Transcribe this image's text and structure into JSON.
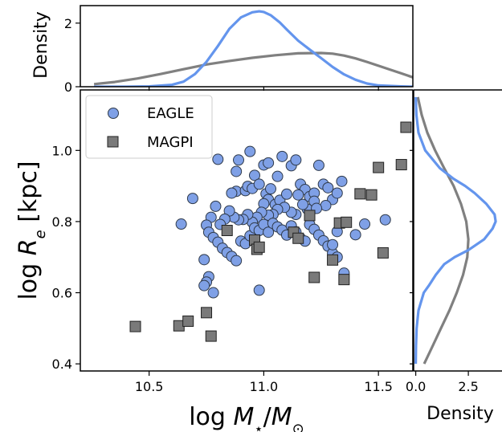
{
  "chart_data": [
    {
      "type": "scatter",
      "panel": "main",
      "title": "",
      "xlabel": "log M⋆/M⊙",
      "ylabel": "log Re [kpc]",
      "xlim": [
        10.2,
        11.65
      ],
      "ylim": [
        0.38,
        1.17
      ],
      "xticks": [
        "10.5",
        "11.0",
        "11.5"
      ],
      "yticks": [
        "0.4",
        "0.6",
        "0.8",
        "1.0"
      ],
      "grid": false,
      "legend_position": "upper-left",
      "series": [
        {
          "name": "EAGLE",
          "marker": "circle",
          "color": "#7fa0e6",
          "points": [
            [
              10.69,
              0.865
            ],
            [
              10.64,
              0.793
            ],
            [
              10.74,
              0.693
            ],
            [
              10.8,
              0.975
            ],
            [
              10.94,
              0.997
            ],
            [
              10.89,
              0.973
            ],
            [
              10.88,
              0.885
            ],
            [
              10.92,
              0.887
            ],
            [
              10.88,
              0.941
            ],
            [
              10.86,
              0.88
            ],
            [
              10.93,
              0.899
            ],
            [
              10.95,
              0.893
            ],
            [
              10.96,
              0.93
            ],
            [
              10.98,
              0.905
            ],
            [
              11.0,
              0.959
            ],
            [
              11.02,
              0.965
            ],
            [
              11.01,
              0.878
            ],
            [
              11.03,
              0.892
            ],
            [
              11.06,
              0.927
            ],
            [
              11.02,
              0.862
            ],
            [
              11.0,
              0.85
            ],
            [
              11.05,
              0.848
            ],
            [
              11.07,
              0.86
            ],
            [
              11.1,
              0.877
            ],
            [
              11.12,
              0.957
            ],
            [
              11.14,
              0.973
            ],
            [
              11.16,
              0.905
            ],
            [
              11.18,
              0.89
            ],
            [
              11.2,
              0.87
            ],
            [
              11.22,
              0.88
            ],
            [
              11.24,
              0.958
            ],
            [
              11.26,
              0.905
            ],
            [
              11.28,
              0.895
            ],
            [
              11.3,
              0.862
            ],
            [
              11.32,
              0.88
            ],
            [
              11.34,
              0.913
            ],
            [
              11.22,
              0.857
            ],
            [
              11.19,
              0.835
            ],
            [
              11.17,
              0.848
            ],
            [
              11.14,
              0.82
            ],
            [
              11.12,
              0.826
            ],
            [
              11.09,
              0.84
            ],
            [
              11.06,
              0.834
            ],
            [
              11.04,
              0.82
            ],
            [
              11.02,
              0.818
            ],
            [
              10.99,
              0.826
            ],
            [
              10.97,
              0.812
            ],
            [
              10.95,
              0.798
            ],
            [
              10.93,
              0.82
            ],
            [
              10.91,
              0.806
            ],
            [
              10.89,
              0.805
            ],
            [
              10.87,
              0.812
            ],
            [
              10.85,
              0.83
            ],
            [
              10.83,
              0.807
            ],
            [
              10.81,
              0.792
            ],
            [
              10.79,
              0.843
            ],
            [
              10.77,
              0.812
            ],
            [
              10.75,
              0.79
            ],
            [
              10.76,
              0.77
            ],
            [
              10.78,
              0.755
            ],
            [
              10.8,
              0.742
            ],
            [
              10.82,
              0.725
            ],
            [
              10.84,
              0.713
            ],
            [
              10.86,
              0.702
            ],
            [
              10.88,
              0.69
            ],
            [
              10.9,
              0.745
            ],
            [
              10.92,
              0.738
            ],
            [
              10.94,
              0.76
            ],
            [
              10.96,
              0.782
            ],
            [
              10.98,
              0.775
            ],
            [
              11.0,
              0.792
            ],
            [
              11.02,
              0.77
            ],
            [
              11.04,
              0.795
            ],
            [
              11.06,
              0.785
            ],
            [
              11.08,
              0.776
            ],
            [
              11.1,
              0.762
            ],
            [
              11.12,
              0.788
            ],
            [
              11.14,
              0.771
            ],
            [
              11.16,
              0.753
            ],
            [
              11.18,
              0.745
            ],
            [
              11.2,
              0.792
            ],
            [
              11.22,
              0.778
            ],
            [
              11.24,
              0.762
            ],
            [
              11.26,
              0.746
            ],
            [
              11.28,
              0.731
            ],
            [
              11.3,
              0.711
            ],
            [
              11.32,
              0.7
            ],
            [
              11.35,
              0.655
            ],
            [
              11.4,
              0.763
            ],
            [
              11.44,
              0.793
            ],
            [
              11.53,
              0.805
            ],
            [
              11.27,
              0.845
            ],
            [
              11.32,
              0.772
            ],
            [
              10.76,
              0.645
            ],
            [
              10.75,
              0.63
            ],
            [
              10.74,
              0.62
            ],
            [
              10.78,
              0.6
            ],
            [
              10.98,
              0.607
            ],
            [
              11.08,
              0.983
            ],
            [
              11.15,
              0.875
            ],
            [
              11.23,
              0.837
            ],
            [
              11.3,
              0.735
            ]
          ]
        },
        {
          "name": "MAGPI",
          "marker": "square",
          "color": "#7a7a7a",
          "points": [
            [
              10.44,
              0.505
            ],
            [
              10.63,
              0.507
            ],
            [
              10.67,
              0.52
            ],
            [
              10.75,
              0.544
            ],
            [
              10.77,
              0.478
            ],
            [
              10.84,
              0.775
            ],
            [
              10.96,
              0.748
            ],
            [
              10.97,
              0.722
            ],
            [
              10.98,
              0.728
            ],
            [
              11.13,
              0.77
            ],
            [
              11.15,
              0.753
            ],
            [
              11.2,
              0.817
            ],
            [
              11.22,
              0.643
            ],
            [
              11.3,
              0.692
            ],
            [
              11.33,
              0.796
            ],
            [
              11.35,
              0.637
            ],
            [
              11.36,
              0.798
            ],
            [
              11.42,
              0.878
            ],
            [
              11.47,
              0.875
            ],
            [
              11.5,
              0.952
            ],
            [
              11.52,
              0.712
            ],
            [
              11.6,
              0.96
            ],
            [
              11.62,
              1.065
            ]
          ]
        }
      ]
    },
    {
      "type": "line",
      "panel": "top-marginal",
      "ylabel": "Density",
      "xlim": [
        10.2,
        11.65
      ],
      "ylim": [
        0,
        2.55
      ],
      "yticks": [
        "0",
        "2"
      ],
      "series": [
        {
          "name": "EAGLE",
          "color": "#6495ed",
          "x": [
            10.26,
            10.4,
            10.5,
            10.6,
            10.65,
            10.7,
            10.75,
            10.8,
            10.85,
            10.9,
            10.95,
            10.98,
            11.0,
            11.03,
            11.07,
            11.1,
            11.15,
            11.2,
            11.25,
            11.3,
            11.35,
            11.4,
            11.45,
            11.5,
            11.6,
            11.66
          ],
          "y": [
            0.0,
            0.0,
            0.01,
            0.06,
            0.16,
            0.4,
            0.78,
            1.28,
            1.82,
            2.18,
            2.34,
            2.37,
            2.35,
            2.25,
            2.02,
            1.8,
            1.45,
            1.17,
            0.9,
            0.62,
            0.39,
            0.22,
            0.1,
            0.04,
            0.01,
            0.0
          ]
        },
        {
          "name": "MAGPI",
          "color": "#808080",
          "x": [
            10.26,
            10.35,
            10.45,
            10.55,
            10.65,
            10.75,
            10.85,
            10.95,
            11.05,
            11.15,
            11.25,
            11.3,
            11.35,
            11.4,
            11.45,
            11.5,
            11.55,
            11.6,
            11.66
          ],
          "y": [
            0.08,
            0.15,
            0.26,
            0.4,
            0.55,
            0.7,
            0.81,
            0.91,
            0.99,
            1.05,
            1.06,
            1.04,
            0.98,
            0.89,
            0.78,
            0.66,
            0.54,
            0.42,
            0.27
          ]
        }
      ]
    },
    {
      "type": "line",
      "panel": "right-marginal",
      "xlabel": "Density",
      "xlim": [
        -0.1,
        4.1
      ],
      "ylim": [
        0.38,
        1.17
      ],
      "xticks": [
        "0.0",
        "2.5"
      ],
      "series": [
        {
          "name": "EAGLE",
          "color": "#6495ed",
          "y": [
            0.4,
            0.45,
            0.5,
            0.55,
            0.6,
            0.62,
            0.65,
            0.68,
            0.7,
            0.72,
            0.75,
            0.78,
            0.8,
            0.82,
            0.85,
            0.88,
            0.9,
            0.92,
            0.95,
            1.0,
            1.05,
            1.1,
            1.15
          ],
          "x": [
            0.0,
            0.01,
            0.04,
            0.13,
            0.38,
            0.62,
            0.95,
            1.35,
            1.85,
            2.5,
            3.25,
            3.65,
            3.8,
            3.75,
            3.35,
            2.8,
            2.35,
            1.8,
            1.15,
            0.45,
            0.13,
            0.03,
            0.0
          ]
        },
        {
          "name": "MAGPI",
          "color": "#808080",
          "y": [
            0.4,
            0.45,
            0.5,
            0.55,
            0.6,
            0.65,
            0.7,
            0.75,
            0.8,
            0.85,
            0.9,
            0.95,
            1.0,
            1.05,
            1.1,
            1.15
          ],
          "x": [
            0.4,
            0.8,
            1.2,
            1.6,
            1.95,
            2.25,
            2.45,
            2.5,
            2.4,
            2.15,
            1.8,
            1.35,
            0.92,
            0.55,
            0.28,
            0.1
          ]
        }
      ]
    }
  ]
}
